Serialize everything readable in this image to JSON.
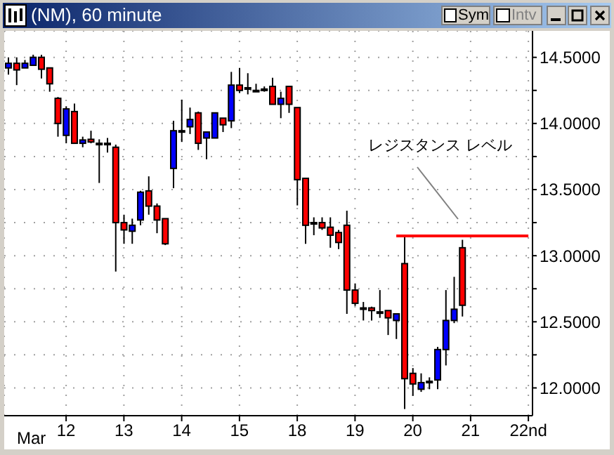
{
  "chart_data": {
    "type": "candlestick",
    "title": "(NM), 60 minute",
    "xlabel": "Mar",
    "categories": [
      null,
      null,
      null,
      null,
      null,
      null,
      null,
      "12",
      null,
      null,
      null,
      null,
      null,
      null,
      "13",
      null,
      null,
      null,
      null,
      null,
      null,
      "14",
      null,
      null,
      null,
      null,
      null,
      null,
      "15",
      null,
      null,
      null,
      null,
      null,
      null,
      "18",
      null,
      null,
      null,
      null,
      null,
      null,
      "19",
      null,
      null,
      null,
      null,
      null,
      null,
      "20",
      null,
      null,
      null,
      null,
      null,
      null,
      "21",
      null,
      null,
      null,
      null,
      null,
      null,
      "22nd"
    ],
    "ohlc": [
      [
        14.42,
        14.5,
        14.37,
        14.455
      ],
      [
        14.455,
        14.5,
        14.29,
        14.405
      ],
      [
        14.42,
        14.48,
        14.42,
        14.455
      ],
      [
        14.44,
        14.52,
        14.44,
        14.5
      ],
      [
        14.5,
        14.52,
        14.34,
        14.41
      ],
      [
        14.42,
        14.42,
        14.24,
        14.3
      ],
      [
        14.19,
        14.2,
        13.9,
        14.0
      ],
      [
        13.91,
        14.13,
        13.85,
        14.11
      ],
      [
        14.09,
        14.15,
        13.85,
        13.85
      ],
      [
        13.85,
        13.9,
        13.82,
        13.875
      ],
      [
        13.88,
        13.945,
        13.85,
        13.86
      ],
      [
        13.85,
        13.88,
        13.55,
        13.85
      ],
      [
        13.85,
        13.89,
        13.78,
        13.85
      ],
      [
        13.82,
        13.84,
        12.88,
        13.25
      ],
      [
        13.25,
        13.31,
        13.09,
        13.195
      ],
      [
        13.185,
        13.28,
        13.09,
        13.23
      ],
      [
        13.27,
        13.49,
        13.23,
        13.48
      ],
      [
        13.49,
        13.6,
        13.31,
        13.375
      ],
      [
        13.375,
        13.395,
        13.17,
        13.27
      ],
      [
        13.28,
        13.28,
        13.08,
        13.09
      ],
      [
        13.66,
        14.02,
        13.51,
        13.945
      ],
      [
        13.945,
        14.18,
        13.86,
        13.945
      ],
      [
        13.975,
        14.12,
        13.92,
        14.03
      ],
      [
        14.08,
        14.09,
        13.8,
        13.85
      ],
      [
        13.89,
        13.935,
        13.73,
        13.935
      ],
      [
        13.89,
        14.08,
        13.89,
        14.08
      ],
      [
        14.04,
        14.04,
        13.935,
        13.99
      ],
      [
        14.02,
        14.39,
        13.965,
        14.29
      ],
      [
        14.29,
        14.42,
        14.23,
        14.25
      ],
      [
        14.27,
        14.38,
        14.22,
        14.27
      ],
      [
        14.25,
        14.3,
        14.25,
        14.25
      ],
      [
        14.26,
        14.28,
        14.24,
        14.26
      ],
      [
        14.28,
        14.345,
        14.145,
        14.145
      ],
      [
        14.145,
        14.24,
        14.04,
        14.19
      ],
      [
        14.28,
        14.28,
        14.08,
        14.145
      ],
      [
        14.12,
        14.12,
        13.38,
        13.575
      ],
      [
        13.585,
        13.585,
        13.09,
        13.23
      ],
      [
        13.25,
        13.29,
        13.155,
        13.25
      ],
      [
        13.25,
        13.29,
        13.195,
        13.21
      ],
      [
        13.215,
        13.29,
        13.06,
        13.155
      ],
      [
        13.175,
        13.195,
        13.05,
        13.1
      ],
      [
        13.23,
        13.34,
        12.56,
        12.74
      ],
      [
        12.74,
        12.79,
        12.62,
        12.64
      ],
      [
        12.605,
        12.65,
        12.51,
        12.605
      ],
      [
        12.605,
        12.615,
        12.51,
        12.585
      ],
      [
        12.575,
        12.74,
        12.53,
        12.575
      ],
      [
        12.585,
        12.585,
        12.4,
        12.53
      ],
      [
        12.51,
        12.56,
        12.37,
        12.56
      ],
      [
        12.94,
        13.14,
        11.84,
        12.07
      ],
      [
        12.11,
        12.15,
        11.94,
        12.03
      ],
      [
        11.99,
        12.11,
        11.97,
        12.04
      ],
      [
        12.05,
        12.08,
        11.99,
        12.05
      ],
      [
        12.06,
        12.31,
        11.99,
        12.29
      ],
      [
        12.29,
        12.74,
        12.17,
        12.51
      ],
      [
        12.51,
        12.84,
        12.49,
        12.595
      ],
      [
        13.06,
        13.12,
        12.54,
        12.625
      ],
      null,
      null,
      null,
      null,
      null,
      null,
      null,
      null
    ],
    "colors": [
      "#0000ff",
      "#ff0000",
      "#0000ff",
      "#0000ff",
      "#ff0000",
      "#ff0000",
      "#ff0000",
      "#0000ff",
      "#ff0000",
      "#0000ff",
      "#ff0000",
      "#000000",
      "#000000",
      "#ff0000",
      "#ff0000",
      "#0000ff",
      "#0000ff",
      "#ff0000",
      "#ff0000",
      "#ff0000",
      "#0000ff",
      "#000000",
      "#0000ff",
      "#ff0000",
      "#0000ff",
      "#0000ff",
      "#ff0000",
      "#0000ff",
      "#ff0000",
      "#000000",
      "#000000",
      "#000000",
      "#ff0000",
      "#0000ff",
      "#ff0000",
      "#ff0000",
      "#ff0000",
      "#000000",
      "#ff0000",
      "#ff0000",
      "#ff0000",
      "#ff0000",
      "#ff0000",
      "#000000",
      "#ff0000",
      "#000000",
      "#ff0000",
      "#0000ff",
      "#ff0000",
      "#ff0000",
      "#0000ff",
      "#000000",
      "#0000ff",
      "#0000ff",
      "#0000ff",
      "#ff0000",
      null,
      null,
      null,
      null,
      null,
      null,
      null,
      null
    ],
    "series": [
      {
        "type": "line",
        "color": "#ff0000",
        "values": [
          null,
          null,
          null,
          null,
          null,
          null,
          null,
          null,
          null,
          null,
          null,
          null,
          null,
          null,
          null,
          null,
          null,
          null,
          null,
          null,
          null,
          null,
          null,
          null,
          null,
          null,
          null,
          null,
          null,
          null,
          null,
          null,
          null,
          null,
          null,
          null,
          null,
          null,
          null,
          null,
          null,
          null,
          null,
          null,
          null,
          null,
          null,
          13.15,
          null,
          null,
          null,
          null,
          null,
          null,
          null,
          null,
          null,
          null,
          null,
          null,
          null,
          null,
          null,
          13.15
        ]
      }
    ],
    "ylim": [
      11.79,
      14.7
    ],
    "yticks": [
      {
        "value": 12,
        "label": "12.0000"
      },
      {
        "value": 12.25,
        "label": null
      },
      {
        "value": 12.5,
        "label": "12.5000"
      },
      {
        "value": 12.75,
        "label": null
      },
      {
        "value": 13,
        "label": "13.0000"
      },
      {
        "value": 13.25,
        "label": null
      },
      {
        "value": 13.5,
        "label": "13.5000"
      },
      {
        "value": 13.75,
        "label": null
      },
      {
        "value": 14,
        "label": "14.0000"
      },
      {
        "value": 14.25,
        "label": null
      },
      {
        "value": 14.5,
        "label": "14.5000"
      }
    ],
    "grid": true,
    "annotations": [
      "レジスタンス レベル",
      "Sym",
      "Intv"
    ]
  }
}
